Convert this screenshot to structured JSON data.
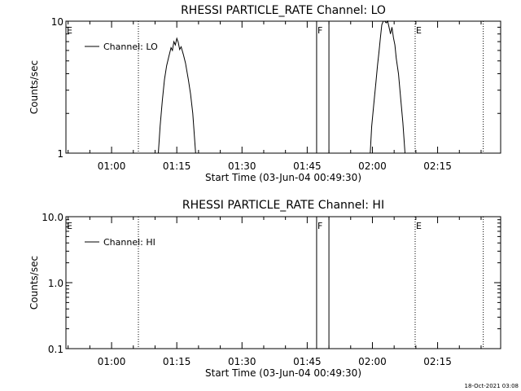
{
  "chart_data": [
    {
      "type": "line",
      "title": "RHESSI PARTICLE_RATE Channel: LO",
      "xlabel": "Start Time (03-Jun-04 00:49:30)",
      "ylabel": "Counts/sec",
      "yscale": "log",
      "ylim": [
        1,
        10
      ],
      "xlim": [
        "00:49:30",
        "02:29:30"
      ],
      "x_tick_labels": [
        "01:00",
        "01:15",
        "01:30",
        "01:45",
        "02:00",
        "02:15"
      ],
      "y_tick_labels": [
        "1",
        "10"
      ],
      "legend": {
        "label": "Channel: LO",
        "placement": "top-left"
      },
      "series": [
        {
          "name": "Channel: LO",
          "points": [
            [
              "01:10:45",
              1.0
            ],
            [
              "01:11:10",
              1.6
            ],
            [
              "01:11:40",
              2.5
            ],
            [
              "01:12:10",
              3.6
            ],
            [
              "01:12:40",
              4.6
            ],
            [
              "01:13:10",
              5.4
            ],
            [
              "01:13:40",
              6.3
            ],
            [
              "01:14:00",
              6.0
            ],
            [
              "01:14:20",
              7.0
            ],
            [
              "01:14:40",
              6.6
            ],
            [
              "01:15:00",
              7.4
            ],
            [
              "01:15:20",
              6.9
            ],
            [
              "01:15:40",
              6.1
            ],
            [
              "01:16:00",
              6.4
            ],
            [
              "01:16:30",
              5.6
            ],
            [
              "01:17:00",
              4.8
            ],
            [
              "01:17:40",
              3.6
            ],
            [
              "01:18:10",
              2.8
            ],
            [
              "01:18:40",
              2.0
            ],
            [
              "01:19:20",
              1.0
            ],
            [
              "01:59:30",
              1.0
            ],
            [
              "01:59:50",
              1.6
            ],
            [
              "02:00:20",
              2.4
            ],
            [
              "02:00:50",
              3.5
            ],
            [
              "02:01:10",
              4.6
            ],
            [
              "02:01:30",
              5.8
            ],
            [
              "02:01:50",
              7.5
            ],
            [
              "02:02:10",
              9.4
            ],
            [
              "02:02:30",
              10.0
            ],
            [
              "02:02:50",
              10.0
            ],
            [
              "02:03:10",
              9.7
            ],
            [
              "02:03:30",
              10.0
            ],
            [
              "02:03:50",
              9.0
            ],
            [
              "02:04:10",
              8.0
            ],
            [
              "02:04:30",
              9.0
            ],
            [
              "02:04:50",
              7.5
            ],
            [
              "02:05:10",
              6.6
            ],
            [
              "02:05:30",
              5.2
            ],
            [
              "02:06:00",
              4.0
            ],
            [
              "02:06:30",
              2.6
            ],
            [
              "02:07:00",
              1.7
            ],
            [
              "02:07:30",
              1.0
            ]
          ]
        }
      ],
      "markers": [
        {
          "label": "E",
          "time": "00:49:30",
          "style": "none"
        },
        {
          "label": "",
          "time": "01:06:10",
          "style": "dotted"
        },
        {
          "label": "F",
          "time": "01:47:10",
          "style": "solid"
        },
        {
          "label": "",
          "time": "01:50:00",
          "style": "solid"
        },
        {
          "label": "E",
          "time": "02:09:50",
          "style": "dotted"
        },
        {
          "label": "",
          "time": "02:25:30",
          "style": "dotted"
        }
      ]
    },
    {
      "type": "line",
      "title": "RHESSI PARTICLE_RATE Channel: HI",
      "xlabel": "Start Time (03-Jun-04 00:49:30)",
      "ylabel": "Counts/sec",
      "yscale": "log",
      "ylim": [
        0.1,
        10
      ],
      "xlim": [
        "00:49:30",
        "02:29:30"
      ],
      "x_tick_labels": [
        "01:00",
        "01:15",
        "01:30",
        "01:45",
        "02:00",
        "02:15"
      ],
      "y_tick_labels": [
        "0.1",
        "1.0",
        "10.0"
      ],
      "legend": {
        "label": "Channel: HI",
        "placement": "top-left"
      },
      "series": [
        {
          "name": "Channel: HI",
          "points": []
        }
      ],
      "markers": [
        {
          "label": "E",
          "time": "00:49:30",
          "style": "none"
        },
        {
          "label": "",
          "time": "01:06:10",
          "style": "dotted"
        },
        {
          "label": "F",
          "time": "01:47:10",
          "style": "solid"
        },
        {
          "label": "",
          "time": "01:50:00",
          "style": "solid"
        },
        {
          "label": "E",
          "time": "02:09:50",
          "style": "dotted"
        },
        {
          "label": "",
          "time": "02:25:30",
          "style": "dotted"
        }
      ]
    }
  ],
  "footer": {
    "timestamp": "18-Oct-2021 03:08"
  }
}
